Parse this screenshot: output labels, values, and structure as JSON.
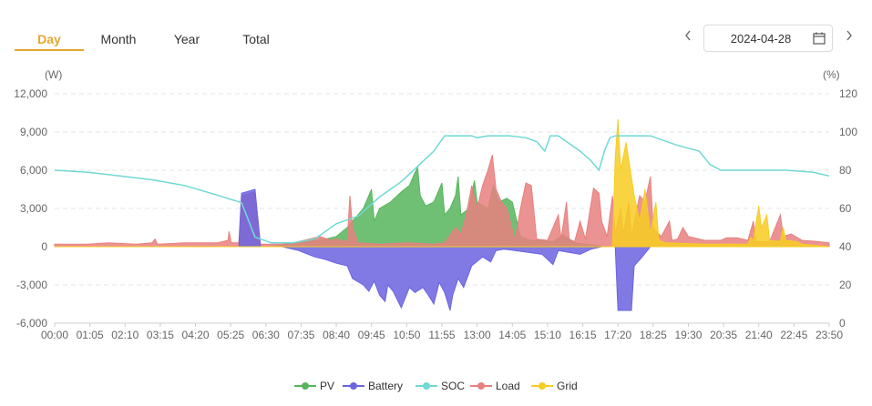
{
  "tabs": [
    {
      "label": "Day",
      "active": true
    },
    {
      "label": "Month",
      "active": false
    },
    {
      "label": "Year",
      "active": false
    },
    {
      "label": "Total",
      "active": false
    }
  ],
  "date": {
    "value": "2024-04-28",
    "prev_icon": "chevron-left-icon",
    "next_icon": "chevron-right-icon",
    "calendar_icon": "calendar-icon"
  },
  "colors": {
    "PV": "#56b55c",
    "Battery": "#6b63e0",
    "SOC": "#6fd9d4",
    "Load": "#e7807f",
    "Grid": "#f7cd22",
    "grid_line": "#e6e6e6",
    "axis_text": "#666666"
  },
  "chart_data": {
    "type": "area",
    "title": "",
    "left_axis_unit": "(W)",
    "right_axis_unit": "(%)",
    "ylim_left": [
      -6000,
      12000
    ],
    "ylim_right": [
      0,
      120
    ],
    "left_ticks": [
      "12,000",
      "9,000",
      "6,000",
      "3,000",
      "0",
      "-3,000",
      "-6,000"
    ],
    "left_tick_values": [
      12000,
      9000,
      6000,
      3000,
      0,
      -3000,
      -6000
    ],
    "right_ticks": [
      "120",
      "100",
      "80",
      "60",
      "40",
      "20",
      "0"
    ],
    "right_tick_values": [
      120,
      100,
      80,
      60,
      40,
      20,
      0
    ],
    "xlim_minutes": [
      0,
      1430
    ],
    "x_ticks": [
      "00:00",
      "01:05",
      "02:10",
      "03:15",
      "04:20",
      "05:25",
      "06:30",
      "07:35",
      "08:40",
      "09:45",
      "10:50",
      "11:55",
      "13:00",
      "14:05",
      "15:10",
      "16:15",
      "17:20",
      "18:25",
      "19:30",
      "20:35",
      "21:40",
      "22:45",
      "23:50"
    ],
    "legend": [
      "PV",
      "Battery",
      "SOC",
      "Load",
      "Grid"
    ],
    "series": [
      {
        "name": "SOC",
        "axis": "right",
        "kind": "line",
        "points": [
          [
            0,
            80
          ],
          [
            60,
            79
          ],
          [
            120,
            77
          ],
          [
            180,
            75
          ],
          [
            240,
            72
          ],
          [
            300,
            67
          ],
          [
            345,
            63
          ],
          [
            370,
            45
          ],
          [
            400,
            42
          ],
          [
            440,
            42
          ],
          [
            480,
            44
          ],
          [
            520,
            52
          ],
          [
            560,
            56
          ],
          [
            600,
            66
          ],
          [
            640,
            74
          ],
          [
            670,
            82
          ],
          [
            700,
            90
          ],
          [
            710,
            94
          ],
          [
            720,
            98
          ],
          [
            770,
            98
          ],
          [
            780,
            97
          ],
          [
            800,
            98
          ],
          [
            840,
            98
          ],
          [
            870,
            97
          ],
          [
            890,
            95
          ],
          [
            905,
            90
          ],
          [
            915,
            98
          ],
          [
            930,
            98
          ],
          [
            970,
            90
          ],
          [
            990,
            85
          ],
          [
            1005,
            80
          ],
          [
            1015,
            90
          ],
          [
            1025,
            97
          ],
          [
            1035,
            98
          ],
          [
            1100,
            98
          ],
          [
            1150,
            93
          ],
          [
            1190,
            90
          ],
          [
            1210,
            83
          ],
          [
            1230,
            80
          ],
          [
            1350,
            80
          ],
          [
            1400,
            79
          ],
          [
            1430,
            77
          ]
        ]
      },
      {
        "name": "PV",
        "axis": "left",
        "kind": "area",
        "points": [
          [
            0,
            0
          ],
          [
            400,
            0
          ],
          [
            430,
            200
          ],
          [
            450,
            300
          ],
          [
            480,
            500
          ],
          [
            500,
            600
          ],
          [
            520,
            800
          ],
          [
            540,
            1500
          ],
          [
            560,
            2500
          ],
          [
            570,
            3000
          ],
          [
            585,
            4500
          ],
          [
            590,
            2000
          ],
          [
            600,
            3000
          ],
          [
            620,
            3500
          ],
          [
            640,
            4300
          ],
          [
            655,
            4800
          ],
          [
            665,
            5800
          ],
          [
            670,
            6200
          ],
          [
            675,
            4000
          ],
          [
            685,
            3200
          ],
          [
            700,
            3500
          ],
          [
            715,
            5000
          ],
          [
            720,
            2500
          ],
          [
            730,
            3000
          ],
          [
            740,
            4000
          ],
          [
            745,
            5500
          ],
          [
            750,
            2500
          ],
          [
            765,
            3000
          ],
          [
            775,
            5200
          ],
          [
            780,
            3500
          ],
          [
            800,
            3000
          ],
          [
            810,
            4800
          ],
          [
            820,
            3500
          ],
          [
            835,
            3800
          ],
          [
            845,
            3500
          ],
          [
            860,
            800
          ],
          [
            880,
            500
          ],
          [
            900,
            500
          ],
          [
            920,
            400
          ],
          [
            940,
            900
          ],
          [
            960,
            300
          ],
          [
            980,
            200
          ],
          [
            1000,
            100
          ],
          [
            1020,
            0
          ],
          [
            1430,
            0
          ]
        ]
      },
      {
        "name": "Load",
        "axis": "left",
        "kind": "area",
        "points": [
          [
            0,
            200
          ],
          [
            60,
            200
          ],
          [
            100,
            300
          ],
          [
            150,
            200
          ],
          [
            180,
            300
          ],
          [
            185,
            600
          ],
          [
            190,
            200
          ],
          [
            240,
            300
          ],
          [
            300,
            300
          ],
          [
            320,
            500
          ],
          [
            322,
            1200
          ],
          [
            326,
            300
          ],
          [
            340,
            300
          ],
          [
            345,
            4000
          ],
          [
            370,
            4300
          ],
          [
            380,
            200
          ],
          [
            420,
            200
          ],
          [
            440,
            300
          ],
          [
            450,
            400
          ],
          [
            470,
            600
          ],
          [
            490,
            800
          ],
          [
            510,
            500
          ],
          [
            520,
            600
          ],
          [
            540,
            400
          ],
          [
            545,
            4000
          ],
          [
            550,
            1500
          ],
          [
            560,
            300
          ],
          [
            600,
            200
          ],
          [
            650,
            300
          ],
          [
            700,
            200
          ],
          [
            720,
            300
          ],
          [
            740,
            1500
          ],
          [
            750,
            1000
          ],
          [
            760,
            2500
          ],
          [
            770,
            4800
          ],
          [
            780,
            3000
          ],
          [
            790,
            4800
          ],
          [
            800,
            6000
          ],
          [
            808,
            7200
          ],
          [
            815,
            4500
          ],
          [
            825,
            3500
          ],
          [
            835,
            3000
          ],
          [
            850,
            500
          ],
          [
            860,
            3000
          ],
          [
            870,
            5000
          ],
          [
            880,
            4800
          ],
          [
            890,
            600
          ],
          [
            910,
            500
          ],
          [
            930,
            2500
          ],
          [
            935,
            600
          ],
          [
            945,
            3500
          ],
          [
            950,
            600
          ],
          [
            960,
            400
          ],
          [
            970,
            2000
          ],
          [
            980,
            600
          ],
          [
            995,
            4600
          ],
          [
            1005,
            4200
          ],
          [
            1010,
            2000
          ],
          [
            1020,
            800
          ],
          [
            1030,
            4000
          ],
          [
            1035,
            1000
          ],
          [
            1045,
            3000
          ],
          [
            1050,
            1000
          ],
          [
            1060,
            3500
          ],
          [
            1065,
            800
          ],
          [
            1075,
            3000
          ],
          [
            1080,
            4000
          ],
          [
            1090,
            3500
          ],
          [
            1100,
            5500
          ],
          [
            1105,
            1500
          ],
          [
            1120,
            800
          ],
          [
            1135,
            2000
          ],
          [
            1140,
            500
          ],
          [
            1150,
            600
          ],
          [
            1160,
            1500
          ],
          [
            1170,
            800
          ],
          [
            1200,
            500
          ],
          [
            1230,
            500
          ],
          [
            1240,
            700
          ],
          [
            1260,
            700
          ],
          [
            1280,
            500
          ],
          [
            1290,
            2000
          ],
          [
            1295,
            400
          ],
          [
            1320,
            400
          ],
          [
            1340,
            2500
          ],
          [
            1345,
            800
          ],
          [
            1360,
            1000
          ],
          [
            1380,
            500
          ],
          [
            1410,
            400
          ],
          [
            1430,
            300
          ]
        ]
      },
      {
        "name": "Battery",
        "axis": "left",
        "kind": "area",
        "points": [
          [
            0,
            0
          ],
          [
            340,
            0
          ],
          [
            345,
            4200
          ],
          [
            370,
            4500
          ],
          [
            380,
            0
          ],
          [
            420,
            0
          ],
          [
            450,
            -300
          ],
          [
            480,
            -800
          ],
          [
            500,
            -1000
          ],
          [
            520,
            -1300
          ],
          [
            540,
            -1500
          ],
          [
            550,
            -2500
          ],
          [
            570,
            -3000
          ],
          [
            580,
            -3500
          ],
          [
            590,
            -2700
          ],
          [
            600,
            -3800
          ],
          [
            610,
            -4300
          ],
          [
            615,
            -3000
          ],
          [
            625,
            -3500
          ],
          [
            640,
            -4800
          ],
          [
            655,
            -3200
          ],
          [
            665,
            -3600
          ],
          [
            680,
            -3200
          ],
          [
            690,
            -3800
          ],
          [
            700,
            -4500
          ],
          [
            710,
            -2800
          ],
          [
            720,
            -3600
          ],
          [
            730,
            -5000
          ],
          [
            735,
            -3800
          ],
          [
            745,
            -2500
          ],
          [
            755,
            -3200
          ],
          [
            770,
            -1500
          ],
          [
            790,
            -800
          ],
          [
            805,
            -1200
          ],
          [
            815,
            -300
          ],
          [
            830,
            -200
          ],
          [
            850,
            -300
          ],
          [
            900,
            -600
          ],
          [
            920,
            -1400
          ],
          [
            930,
            -300
          ],
          [
            970,
            -600
          ],
          [
            990,
            -200
          ],
          [
            1010,
            0
          ],
          [
            1035,
            0
          ],
          [
            1040,
            -5000
          ],
          [
            1065,
            -5000
          ],
          [
            1070,
            -1500
          ],
          [
            1085,
            -800
          ],
          [
            1100,
            0
          ],
          [
            1430,
            0
          ]
        ]
      },
      {
        "name": "Grid",
        "axis": "left",
        "kind": "area",
        "points": [
          [
            0,
            0
          ],
          [
            1030,
            0
          ],
          [
            1035,
            7000
          ],
          [
            1040,
            10000
          ],
          [
            1045,
            6000
          ],
          [
            1055,
            8200
          ],
          [
            1070,
            4000
          ],
          [
            1080,
            2000
          ],
          [
            1090,
            4500
          ],
          [
            1100,
            1000
          ],
          [
            1110,
            3500
          ],
          [
            1115,
            600
          ],
          [
            1120,
            400
          ],
          [
            1130,
            300
          ],
          [
            1200,
            200
          ],
          [
            1280,
            200
          ],
          [
            1285,
            700
          ],
          [
            1290,
            500
          ],
          [
            1300,
            3200
          ],
          [
            1305,
            1500
          ],
          [
            1315,
            2500
          ],
          [
            1320,
            500
          ],
          [
            1340,
            400
          ],
          [
            1345,
            1500
          ],
          [
            1350,
            500
          ],
          [
            1370,
            400
          ],
          [
            1380,
            200
          ],
          [
            1430,
            0
          ]
        ]
      }
    ]
  }
}
